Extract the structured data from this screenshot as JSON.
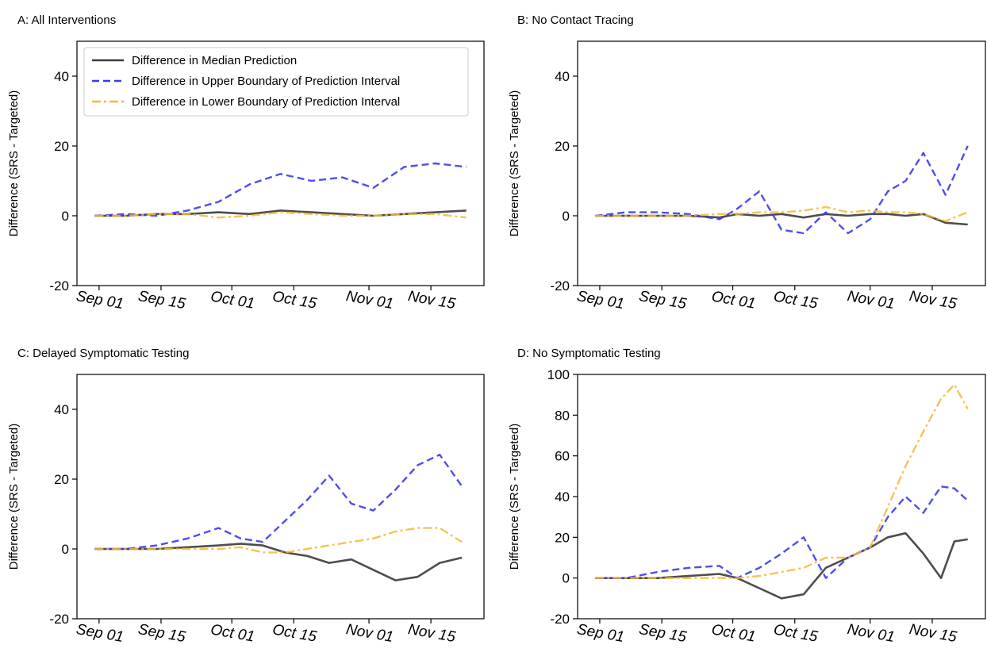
{
  "figure": {
    "legend": {
      "placement": "upper-left of panel A",
      "entries": [
        {
          "label": "Difference in Median Prediction",
          "color": "#3a3a3a",
          "style": "solid"
        },
        {
          "label": "Difference in Upper Boundary of Prediction Interval",
          "color": "#3a3af0",
          "style": "dashed"
        },
        {
          "label": "Difference in Lower Boundary of Prediction Interval",
          "color": "#f7b733",
          "style": "dashdot"
        }
      ]
    }
  },
  "chart_data": [
    {
      "type": "line",
      "title": "A: All Interventions",
      "ylabel": "Difference (SRS - Targeted)",
      "xlim": [
        "2020-08-27",
        "2020-11-27"
      ],
      "ylim": [
        -20,
        50
      ],
      "yticks": [
        -20,
        0,
        20,
        40
      ],
      "xticks": [
        "Sep 01",
        "Sep 15",
        "Oct 01",
        "Oct 15",
        "Nov 01",
        "Nov 15"
      ],
      "xtick_dates": [
        "2020-09-01",
        "2020-09-15",
        "2020-10-01",
        "2020-10-15",
        "2020-11-01",
        "2020-11-15"
      ],
      "x": [
        "2020-08-31",
        "2020-09-07",
        "2020-09-14",
        "2020-09-21",
        "2020-09-28",
        "2020-10-05",
        "2020-10-12",
        "2020-10-19",
        "2020-10-26",
        "2020-11-02",
        "2020-11-09",
        "2020-11-16",
        "2020-11-23"
      ],
      "series": [
        {
          "name": "Difference in Median Prediction",
          "values": [
            0,
            0,
            0.5,
            0.5,
            1,
            0.5,
            1.5,
            1,
            0.5,
            0,
            0.5,
            1,
            1.5
          ]
        },
        {
          "name": "Difference in Upper Boundary of Prediction Interval",
          "values": [
            0,
            0.5,
            0,
            1.5,
            4,
            9,
            12,
            10,
            11,
            8,
            14,
            15,
            14
          ]
        },
        {
          "name": "Difference in Lower Boundary of Prediction Interval",
          "values": [
            0,
            0,
            0.5,
            0.5,
            -0.5,
            0,
            1,
            0.5,
            0,
            0,
            0.5,
            0.5,
            -0.5
          ]
        }
      ]
    },
    {
      "type": "line",
      "title": "B: No Contact Tracing",
      "ylabel": "Difference (SRS - Targeted)",
      "xlim": [
        "2020-08-27",
        "2020-11-27"
      ],
      "ylim": [
        -20,
        50
      ],
      "yticks": [
        -20,
        0,
        20,
        40
      ],
      "xticks": [
        "Sep 01",
        "Sep 15",
        "Oct 01",
        "Oct 15",
        "Nov 01",
        "Nov 15"
      ],
      "xtick_dates": [
        "2020-09-01",
        "2020-09-15",
        "2020-10-01",
        "2020-10-15",
        "2020-11-01",
        "2020-11-15"
      ],
      "x": [
        "2020-08-31",
        "2020-09-07",
        "2020-09-14",
        "2020-09-21",
        "2020-09-28",
        "2020-10-02",
        "2020-10-07",
        "2020-10-12",
        "2020-10-17",
        "2020-10-22",
        "2020-10-27",
        "2020-11-01",
        "2020-11-05",
        "2020-11-09",
        "2020-11-13",
        "2020-11-18",
        "2020-11-23"
      ],
      "series": [
        {
          "name": "Difference in Median Prediction",
          "values": [
            0,
            0,
            0,
            0,
            -0.5,
            0.5,
            0,
            0.5,
            -0.5,
            0.5,
            0,
            0.5,
            0.5,
            0,
            0.5,
            -2,
            -2.5
          ]
        },
        {
          "name": "Difference in Upper Boundary of Prediction Interval",
          "values": [
            0,
            1,
            1,
            0.5,
            -1,
            2,
            7,
            -4,
            -5,
            1,
            -5,
            -1,
            7,
            10,
            18,
            6,
            20
          ]
        },
        {
          "name": "Difference in Lower Boundary of Prediction Interval",
          "values": [
            0,
            0,
            0,
            0,
            0.5,
            0.5,
            1,
            1,
            1.5,
            2.5,
            1,
            1.5,
            1,
            1,
            0.5,
            -1.5,
            1
          ]
        }
      ]
    },
    {
      "type": "line",
      "title": "C: Delayed Symptomatic Testing",
      "ylabel": "Difference (SRS - Targeted)",
      "xlim": [
        "2020-08-27",
        "2020-11-27"
      ],
      "ylim": [
        -20,
        50
      ],
      "yticks": [
        -20,
        0,
        20,
        40
      ],
      "xticks": [
        "Sep 01",
        "Sep 15",
        "Oct 01",
        "Oct 15",
        "Nov 01",
        "Nov 15"
      ],
      "xtick_dates": [
        "2020-09-01",
        "2020-09-15",
        "2020-10-01",
        "2020-10-15",
        "2020-11-01",
        "2020-11-15"
      ],
      "x": [
        "2020-08-31",
        "2020-09-07",
        "2020-09-14",
        "2020-09-21",
        "2020-09-28",
        "2020-10-03",
        "2020-10-08",
        "2020-10-13",
        "2020-10-18",
        "2020-10-23",
        "2020-10-28",
        "2020-11-02",
        "2020-11-07",
        "2020-11-12",
        "2020-11-17",
        "2020-11-22"
      ],
      "series": [
        {
          "name": "Difference in Median Prediction",
          "values": [
            0,
            0,
            0,
            0.5,
            1,
            1.5,
            1,
            -1,
            -2,
            -4,
            -3,
            -6,
            -9,
            -8,
            -4,
            -2.5
          ]
        },
        {
          "name": "Difference in Upper Boundary of Prediction Interval",
          "values": [
            0,
            0,
            1,
            3,
            6,
            3,
            2,
            8,
            14,
            21,
            13,
            11,
            17,
            24,
            27,
            18
          ]
        },
        {
          "name": "Difference in Lower Boundary of Prediction Interval",
          "values": [
            0,
            0,
            0,
            0,
            0,
            0.5,
            -1,
            -1,
            0,
            1,
            2,
            3,
            5,
            6,
            6,
            2
          ]
        }
      ]
    },
    {
      "type": "line",
      "title": "D: No Symptomatic Testing",
      "ylabel": "Difference (SRS - Targeted)",
      "xlim": [
        "2020-08-27",
        "2020-11-27"
      ],
      "ylim": [
        -20,
        100
      ],
      "yticks": [
        -20,
        0,
        20,
        40,
        60,
        80,
        100
      ],
      "xticks": [
        "Sep 01",
        "Sep 15",
        "Oct 01",
        "Oct 15",
        "Nov 01",
        "Nov 15"
      ],
      "xtick_dates": [
        "2020-09-01",
        "2020-09-15",
        "2020-10-01",
        "2020-10-15",
        "2020-11-01",
        "2020-11-15"
      ],
      "x": [
        "2020-08-31",
        "2020-09-07",
        "2020-09-14",
        "2020-09-21",
        "2020-09-28",
        "2020-10-02",
        "2020-10-07",
        "2020-10-12",
        "2020-10-17",
        "2020-10-22",
        "2020-10-27",
        "2020-11-01",
        "2020-11-05",
        "2020-11-09",
        "2020-11-13",
        "2020-11-17",
        "2020-11-20",
        "2020-11-23"
      ],
      "series": [
        {
          "name": "Difference in Median Prediction",
          "values": [
            0,
            0,
            0,
            1,
            2,
            0,
            -5,
            -10,
            -8,
            5,
            10,
            15,
            20,
            22,
            12,
            0,
            18,
            19
          ]
        },
        {
          "name": "Difference in Upper Boundary of Prediction Interval",
          "values": [
            0,
            0,
            3,
            5,
            6,
            0,
            5,
            12,
            20,
            0,
            10,
            15,
            30,
            40,
            32,
            45,
            44,
            38
          ]
        },
        {
          "name": "Difference in Lower Boundary of Prediction Interval",
          "values": [
            0,
            0,
            0,
            0,
            0,
            0,
            1,
            3,
            5,
            10,
            10,
            15,
            35,
            55,
            72,
            88,
            95,
            83
          ]
        }
      ]
    }
  ]
}
